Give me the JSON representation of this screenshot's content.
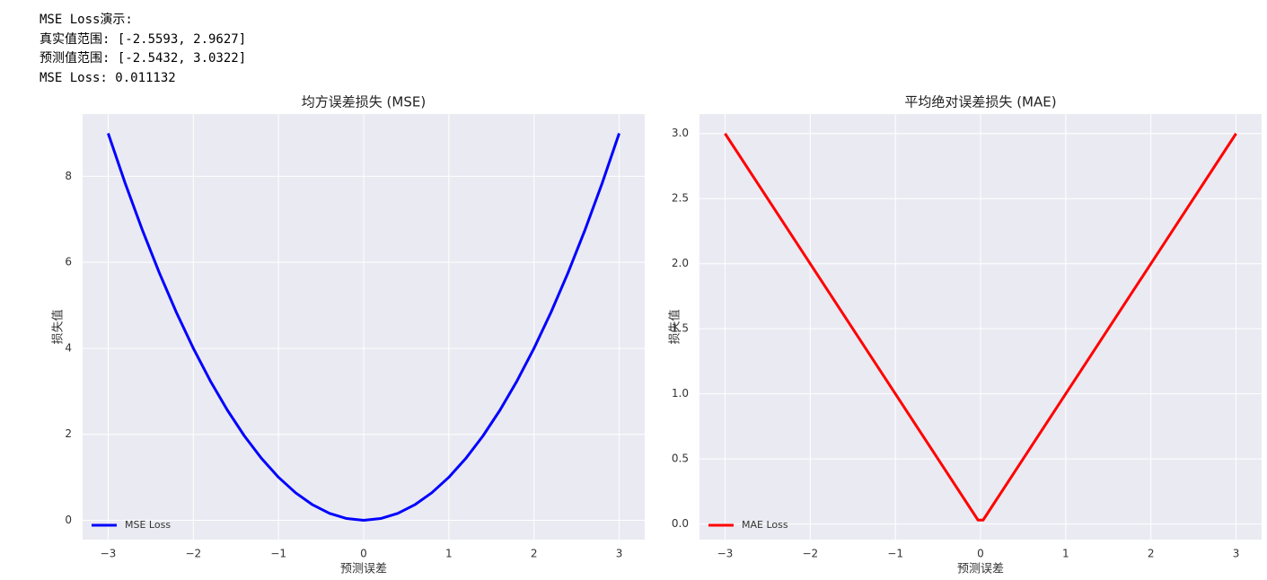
{
  "output_lines": [
    "MSE Loss演示:",
    "真实值范围: [-2.5593, 2.9627]",
    "预测值范围: [-2.5432, 3.0322]",
    "MSE Loss: 0.011132"
  ],
  "chart_data": [
    {
      "type": "line",
      "title": "均方误差损失 (MSE)",
      "xlabel": "预测误差",
      "ylabel": "损失值",
      "x": [
        -3,
        -2.8,
        -2.6,
        -2.4,
        -2.2,
        -2,
        -1.8,
        -1.6,
        -1.4,
        -1.2,
        -1,
        -0.8,
        -0.6,
        -0.4,
        -0.2,
        0,
        0.2,
        0.4,
        0.6,
        0.8,
        1,
        1.2,
        1.4,
        1.6,
        1.8,
        2,
        2.2,
        2.4,
        2.6,
        2.8,
        3
      ],
      "series": [
        {
          "name": "MSE Loss",
          "color": "#0000ff",
          "values": [
            9,
            7.84,
            6.76,
            5.76,
            4.84,
            4,
            3.24,
            2.56,
            1.96,
            1.44,
            1,
            0.64,
            0.36,
            0.16,
            0.04,
            0,
            0.04,
            0.16,
            0.36,
            0.64,
            1,
            1.44,
            1.96,
            2.56,
            3.24,
            4,
            4.84,
            5.76,
            6.76,
            7.84,
            9
          ]
        }
      ],
      "xlim": [
        -3.3,
        3.3
      ],
      "ylim": [
        -0.45,
        9.45
      ],
      "xticks": [
        {
          "value": -3,
          "label": "−3"
        },
        {
          "value": -2,
          "label": "−2"
        },
        {
          "value": -1,
          "label": "−1"
        },
        0,
        1,
        2,
        3
      ],
      "yticks": [
        0,
        2,
        4,
        6,
        8
      ],
      "grid": true,
      "legend": "lower left"
    },
    {
      "type": "line",
      "title": "平均绝对误差损失 (MAE)",
      "xlabel": "预测误差",
      "ylabel": "损失值",
      "x": [
        -3,
        -0.03,
        0.03,
        3
      ],
      "series": [
        {
          "name": "MAE Loss",
          "color": "#ff0000",
          "values": [
            3,
            0.03,
            0.03,
            3
          ]
        }
      ],
      "xlim": [
        -3.3,
        3.3
      ],
      "ylim": [
        -0.12,
        3.15
      ],
      "xticks": [
        {
          "value": -3,
          "label": "−3"
        },
        {
          "value": -2,
          "label": "−2"
        },
        {
          "value": -1,
          "label": "−1"
        },
        0,
        1,
        2,
        3
      ],
      "yticks": [
        {
          "value": 0,
          "label": "0.0"
        },
        0.5,
        {
          "value": 1,
          "label": "1.0"
        },
        1.5,
        {
          "value": 2,
          "label": "2.0"
        },
        2.5,
        {
          "value": 3,
          "label": "3.0"
        }
      ],
      "grid": true,
      "legend": "lower left"
    }
  ]
}
